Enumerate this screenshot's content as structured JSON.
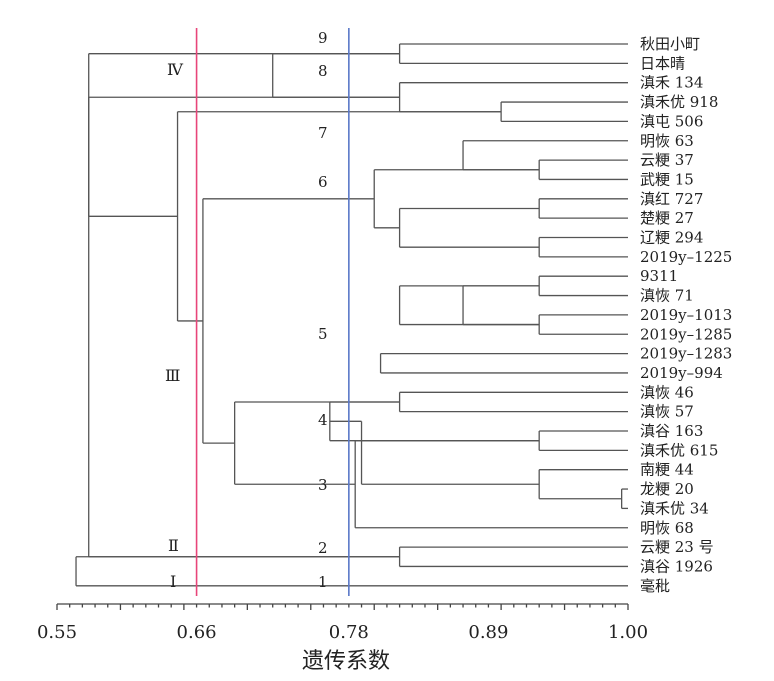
{
  "leaves": [
    "秋田小町",
    "日本晴",
    "滇禾 134",
    "滇禾优 918",
    "滇屯 506",
    "明恢 63",
    "云粳 37",
    "武粳 15",
    "滇红 727",
    "楚粳 27",
    "辽粳 294",
    "2019y–1225",
    "9311",
    "滇恢 71",
    "2019y–1013",
    "2019y–1285",
    "2019y–1283",
    "2019y–994",
    "滇恢 46",
    "滇恢 57",
    "滇谷 163",
    "滇禾优 615",
    "南粳 44",
    "龙粳 20",
    "滇禾优 34",
    "明恢 68",
    "云粳 23 号",
    "滇谷 1926",
    "毫秕"
  ],
  "axis": {
    "label": "遗传系数",
    "ticks": [
      "0.55",
      "0.66",
      "0.78",
      "0.89",
      "1.00"
    ],
    "tick_values": [
      0.55,
      0.66,
      0.78,
      0.89,
      1.0
    ],
    "min": 0.55,
    "max": 1.0
  },
  "threshold_lines": [
    {
      "value": 0.66,
      "color": "#e8457a"
    },
    {
      "value": 0.78,
      "color": "#5a78c8"
    }
  ],
  "cluster_numbers": [
    "9",
    "8",
    "7",
    "6",
    "5",
    "4",
    "3",
    "2",
    "1"
  ],
  "groups": [
    "Ⅳ",
    "Ⅲ",
    "Ⅱ",
    "Ⅰ"
  ],
  "merges": [
    {
      "a": 3,
      "b": 4,
      "h": 0.9
    },
    {
      "a": 0,
      "b": 1,
      "h": 0.82
    },
    {
      "a": 2,
      "b": 3,
      "h": 0.82
    },
    {
      "a": 6,
      "b": 7,
      "h": 0.93
    },
    {
      "a": 8,
      "b": 9,
      "h": 0.93
    },
    {
      "a": 10,
      "b": 11,
      "h": 0.93
    },
    {
      "a": 12,
      "b": 13,
      "h": 0.93
    },
    {
      "a": 14,
      "b": 15,
      "h": 0.93
    },
    {
      "a": 18,
      "b": 19,
      "h": 0.82
    },
    {
      "a": 20,
      "b": 21,
      "h": 0.93
    },
    {
      "a": 23,
      "b": 24,
      "h": 0.995
    },
    {
      "a": 26,
      "b": 27,
      "h": 0.82
    },
    {
      "a": 5,
      "b": 6,
      "h": 0.87
    },
    {
      "a": 9,
      "b": 10,
      "h": 0.82
    },
    {
      "a": 7,
      "b": 9,
      "h": 0.8
    },
    {
      "a": 13,
      "b": 14,
      "h": 0.87
    },
    {
      "a": 12,
      "b": 15,
      "h": 0.82
    },
    {
      "a": 16,
      "b": 17,
      "h": 0.805
    },
    {
      "a": 19,
      "b": 20,
      "h": 0.765
    },
    {
      "a": 22,
      "b": 23,
      "h": 0.93
    },
    {
      "a": 20,
      "b": 22,
      "h": 0.79
    },
    {
      "a": 21,
      "b": 25,
      "h": 0.785
    },
    {
      "a": 18,
      "b": 21,
      "h": 0.69
    },
    {
      "a": 0,
      "b": 2,
      "h": 0.72
    },
    {
      "a": 7,
      "b": 18,
      "h": 0.665
    },
    {
      "a": 4,
      "b": 7,
      "h": 0.645
    },
    {
      "a": 1,
      "b": 7,
      "h": 0.575
    },
    {
      "a": 3,
      "b": 26,
      "h": 0.575
    },
    {
      "a": 28,
      "b": 27,
      "h": 0.565
    }
  ]
}
